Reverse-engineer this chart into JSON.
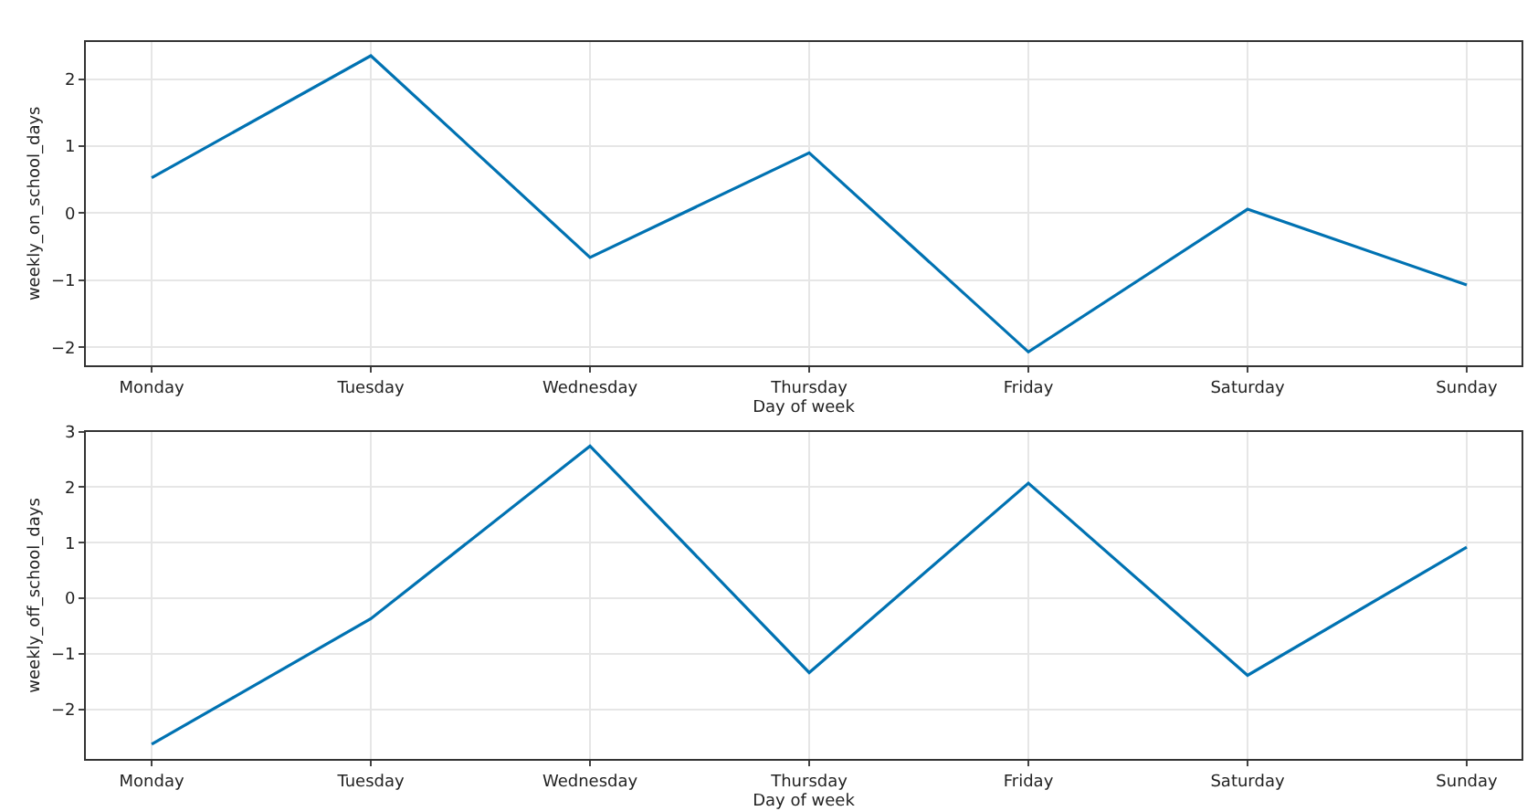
{
  "chart_data": [
    {
      "type": "line",
      "xlabel": "Day of week",
      "ylabel": "weekly_on_school_days",
      "categories": [
        "Monday",
        "Tuesday",
        "Wednesday",
        "Thursday",
        "Friday",
        "Saturday",
        "Sunday"
      ],
      "series": [
        {
          "color": "#0072b2",
          "values": [
            0.53,
            2.35,
            -0.66,
            0.9,
            -2.07,
            0.06,
            -1.07
          ]
        }
      ],
      "ylim": [
        -2.27,
        2.56
      ],
      "yticks": [
        -2,
        -1,
        0,
        1,
        2
      ],
      "grid": true
    },
    {
      "type": "line",
      "xlabel": "Day of week",
      "ylabel": "weekly_off_school_days",
      "categories": [
        "Monday",
        "Tuesday",
        "Wednesday",
        "Thursday",
        "Friday",
        "Saturday",
        "Sunday"
      ],
      "series": [
        {
          "color": "#0072b2",
          "values": [
            -2.63,
            -0.37,
            2.74,
            -1.34,
            2.07,
            -1.39,
            0.92
          ]
        }
      ],
      "ylim": [
        -2.9,
        3.0
      ],
      "yticks": [
        -2,
        -1,
        0,
        1,
        2,
        3
      ],
      "grid": true
    }
  ]
}
